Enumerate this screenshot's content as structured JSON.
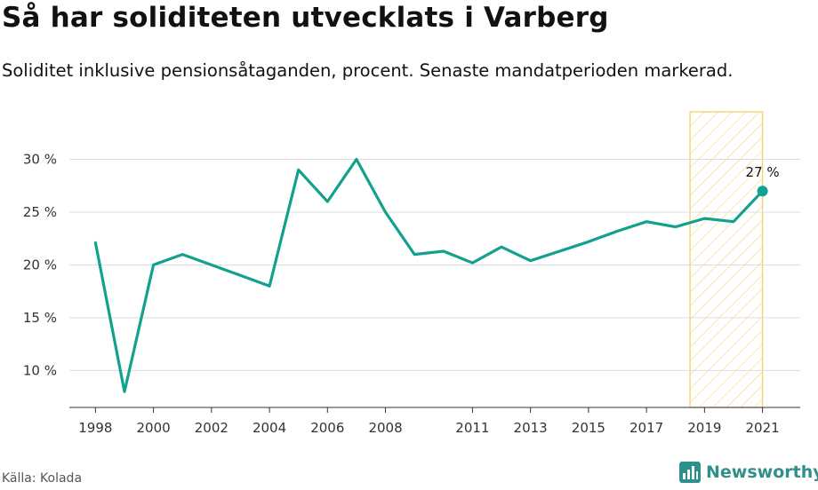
{
  "title": "Så har soliditeten utvecklats i Varberg",
  "subtitle": "Soliditet inklusive pensionsåtaganden, procent. Senaste mandatperioden markerad.",
  "source": "Källa: Kolada",
  "brand": "Newsworthy",
  "colors": {
    "line": "#12a08f",
    "highlight_stroke": "#f5cf7a",
    "highlight_hatch": "#f7d98f",
    "grid": "#dddddd",
    "axis": "#333333"
  },
  "chart_data": {
    "type": "line",
    "title": "Så har soliditeten utvecklats i Varberg",
    "subtitle": "Soliditet inklusive pensionsåtaganden, procent. Senaste mandatperioden markerad.",
    "xlabel": "",
    "ylabel": "",
    "x": [
      1998,
      1999,
      2000,
      2001,
      2002,
      2003,
      2004,
      2005,
      2006,
      2007,
      2008,
      2009,
      2010,
      2011,
      2012,
      2013,
      2014,
      2015,
      2016,
      2017,
      2018,
      2019,
      2020,
      2021
    ],
    "series": [
      {
        "values": [
          22.1,
          8.0,
          20.0,
          21.0,
          20.0,
          19.0,
          18.0,
          29.0,
          26.0,
          30.0,
          25.0,
          21.0,
          21.3,
          20.2,
          21.7,
          20.4,
          21.3,
          22.2,
          23.2,
          24.1,
          23.6,
          24.4,
          24.1,
          27.0
        ]
      }
    ],
    "xticks": [
      "1998",
      "2000",
      "2002",
      "2004",
      "2006",
      "2008",
      "2011",
      "2013",
      "2015",
      "2017",
      "2019",
      "2021"
    ],
    "yticks": [
      "10 %",
      "15 %",
      "20 %",
      "25 %",
      "30 %"
    ],
    "ytick_values": [
      10,
      15,
      20,
      25,
      30
    ],
    "ylim": [
      6.5,
      34.5
    ],
    "xlim": [
      1997.1,
      2022.3
    ],
    "highlight_range": [
      2018.5,
      2021
    ],
    "end_label": "27 %",
    "grid": true
  }
}
